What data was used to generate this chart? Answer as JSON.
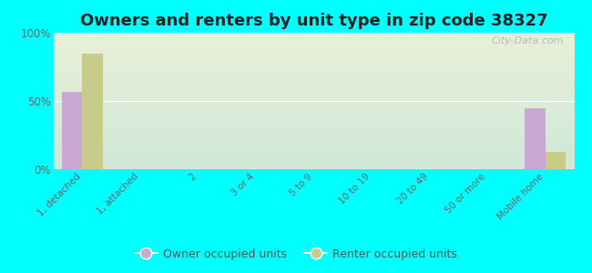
{
  "title": "Owners and renters by unit type in zip code 38327",
  "categories": [
    "1, detached",
    "1, attached",
    "2",
    "3 or 4",
    "5 to 9",
    "10 to 19",
    "20 to 49",
    "50 or more",
    "Mobile home"
  ],
  "owner_values": [
    57,
    0,
    0,
    0,
    0,
    0,
    0,
    0,
    45
  ],
  "renter_values": [
    85,
    0,
    0,
    0,
    0,
    0,
    0,
    0,
    13
  ],
  "owner_color": "#c9a8d4",
  "renter_color": "#c8cc8a",
  "background_color": "#00ffff",
  "gradient_top": "#e8f0d8",
  "gradient_bottom": "#d0e8d8",
  "ylim": [
    0,
    100
  ],
  "yticks": [
    0,
    50,
    100
  ],
  "ytick_labels": [
    "0%",
    "50%",
    "100%"
  ],
  "title_fontsize": 13,
  "legend_labels": [
    "Owner occupied units",
    "Renter occupied units"
  ],
  "watermark": "City-Data.com",
  "bar_width": 0.35
}
